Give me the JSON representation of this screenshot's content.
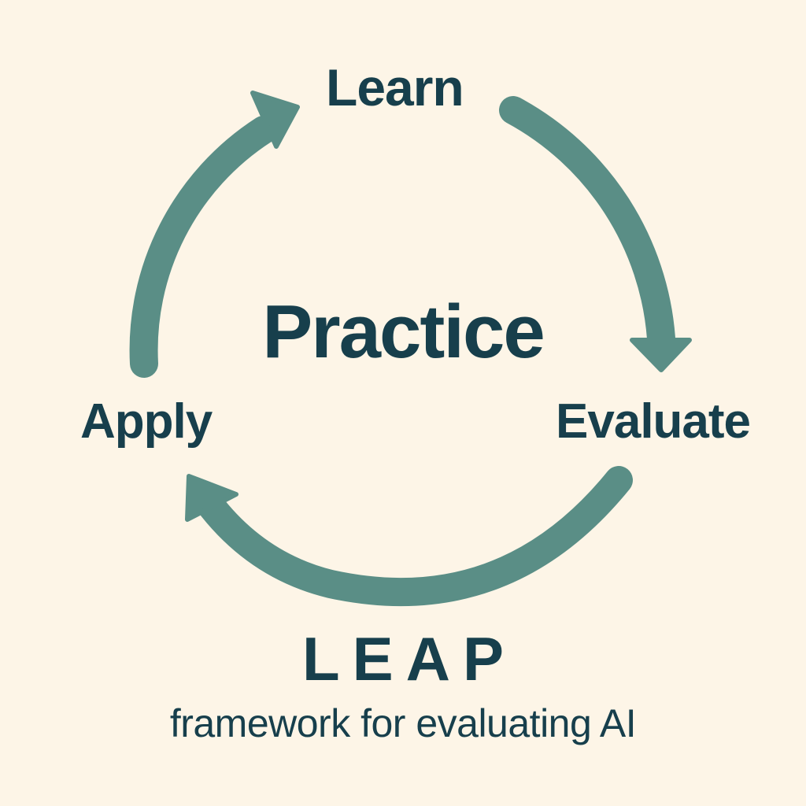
{
  "diagram": {
    "title_center": "Practice",
    "stages": [
      {
        "id": "learn",
        "label": "Learn"
      },
      {
        "id": "evaluate",
        "label": "Evaluate"
      },
      {
        "id": "apply",
        "label": "Apply"
      }
    ],
    "cycle_direction": "clockwise",
    "acronym": "LEAP",
    "subtitle": "framework for evaluating AI"
  },
  "colors": {
    "background": "#fdf5e7",
    "arrow": "#5a8e86",
    "text": "#173f4c"
  }
}
